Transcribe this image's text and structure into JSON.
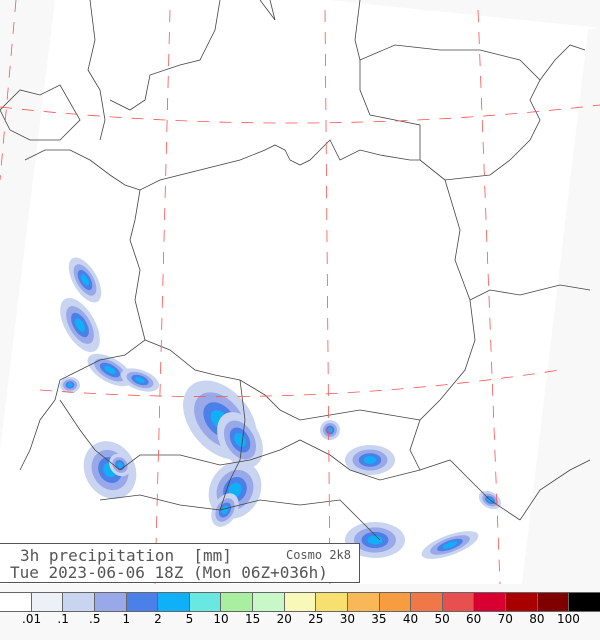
{
  "title": {
    "line1": "3h precipitation  [mm]",
    "model": "Cosmo 2k8",
    "line2": "Tue 2023-06-06 18Z (Mon 06Z+036h)"
  },
  "legend": {
    "colors": [
      "#ffffff",
      "#eef0f8",
      "#c8d4f0",
      "#98a8e8",
      "#4a80e8",
      "#10b0f8",
      "#68e8e0",
      "#a8f0a0",
      "#c8f8c8",
      "#f8f8b8",
      "#f8e070",
      "#f8b858",
      "#f89c40",
      "#f07848",
      "#e85050",
      "#d80030",
      "#a80000",
      "#800000",
      "#000000"
    ],
    "labels": [
      ".01",
      ".1",
      ".5",
      "1",
      "2",
      "5",
      "10",
      "15",
      "20",
      "25",
      "30",
      "35",
      "40",
      "50",
      "60",
      "70",
      "80",
      "100"
    ]
  },
  "colors": {
    "border": "#444444",
    "grid": "#ff5050",
    "outside": "#f8f8f8"
  }
}
